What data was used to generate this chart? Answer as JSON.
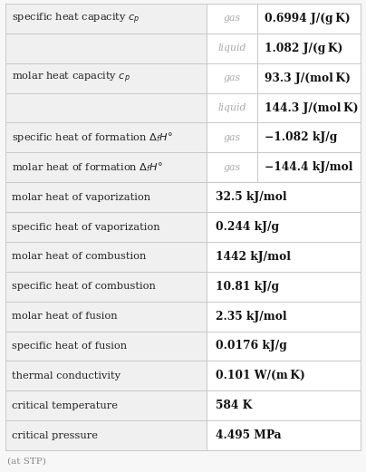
{
  "bg_color": "#f7f7f7",
  "table_bg": "#ffffff",
  "border_color": "#c8c8c8",
  "col1_bg": "#f0f0f0",
  "label_color": "#222222",
  "phase_color": "#aaaaaa",
  "value_color": "#111111",
  "footnote_color": "#888888",
  "rows": [
    {
      "label": "specific heat capacity $c_p$",
      "phase": "gas",
      "value": "0.6994 J/(g K)",
      "span": false
    },
    {
      "label": "",
      "phase": "liquid",
      "value": "1.082 J/(g K)",
      "span": false
    },
    {
      "label": "molar heat capacity $c_p$",
      "phase": "gas",
      "value": "93.3 J/(mol K)",
      "span": false
    },
    {
      "label": "",
      "phase": "liquid",
      "value": "144.3 J/(mol K)",
      "span": false
    },
    {
      "label": "specific heat of formation $\\Delta_f H$°",
      "phase": "gas",
      "value": "−1.082 kJ/g",
      "span": false
    },
    {
      "label": "molar heat of formation $\\Delta_f H$°",
      "phase": "gas",
      "value": "−144.4 kJ/mol",
      "span": false
    },
    {
      "label": "molar heat of vaporization",
      "phase": "",
      "value": "32.5 kJ/mol",
      "span": true
    },
    {
      "label": "specific heat of vaporization",
      "phase": "",
      "value": "0.244 kJ/g",
      "span": true
    },
    {
      "label": "molar heat of combustion",
      "phase": "",
      "value": "1442 kJ/mol",
      "span": true
    },
    {
      "label": "specific heat of combustion",
      "phase": "",
      "value": "10.81 kJ/g",
      "span": true
    },
    {
      "label": "molar heat of fusion",
      "phase": "",
      "value": "2.35 kJ/mol",
      "span": true
    },
    {
      "label": "specific heat of fusion",
      "phase": "",
      "value": "0.0176 kJ/g",
      "span": true
    },
    {
      "label": "thermal conductivity",
      "phase": "",
      "value": "0.101 W/(m K)",
      "span": true
    },
    {
      "label": "critical temperature",
      "phase": "",
      "value": "584 K",
      "span": true
    },
    {
      "label": "critical pressure",
      "phase": "",
      "value": "4.495 MPa",
      "span": true
    }
  ],
  "footnote": "(at STP)",
  "label_fontsize": 8.2,
  "phase_fontsize": 7.8,
  "value_fontsize": 8.8,
  "footnote_fontsize": 7.5
}
